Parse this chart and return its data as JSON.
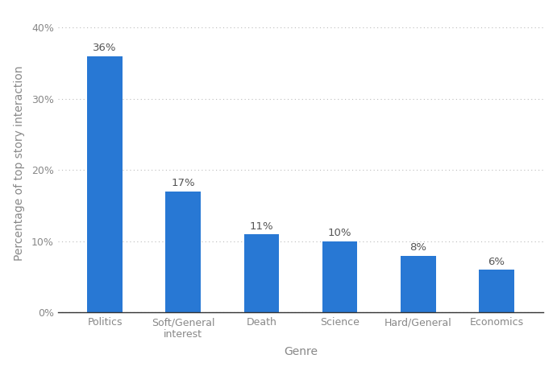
{
  "categories": [
    "Politics",
    "Soft/General\ninterest",
    "Death",
    "Science",
    "Hard/General",
    "Economics"
  ],
  "values": [
    36,
    17,
    11,
    10,
    8,
    6
  ],
  "bar_color": "#2878d4",
  "bar_labels": [
    "36%",
    "17%",
    "11%",
    "10%",
    "8%",
    "6%"
  ],
  "xlabel": "Genre",
  "ylabel": "Percentage of top story interaction",
  "ylim": [
    0,
    42
  ],
  "yticks": [
    0,
    10,
    20,
    30,
    40
  ],
  "ytick_labels": [
    "0%",
    "10%",
    "20%",
    "30%",
    "40%"
  ],
  "background_color": "#ffffff",
  "plot_bg_color": "#ffffff",
  "grid_color": "#bbbbbb",
  "bar_label_fontsize": 9.5,
  "axis_label_fontsize": 10,
  "tick_fontsize": 9,
  "bar_width": 0.45
}
